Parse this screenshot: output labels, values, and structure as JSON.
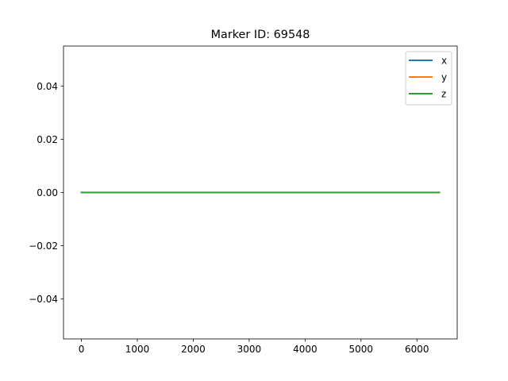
{
  "chart_data": {
    "type": "line",
    "title": "Marker ID: 69548",
    "xlabel": "",
    "ylabel": "",
    "xlim": [
      -320,
      6720
    ],
    "ylim": [
      -0.055,
      0.055
    ],
    "x_ticks": [
      0,
      1000,
      2000,
      3000,
      4000,
      5000,
      6000
    ],
    "y_ticks": [
      -0.04,
      -0.02,
      0.0,
      0.02,
      0.04
    ],
    "x_tick_labels": [
      "0",
      "1000",
      "2000",
      "3000",
      "4000",
      "5000",
      "6000"
    ],
    "y_tick_labels": [
      "−0.04",
      "−0.02",
      "0.00",
      "0.02",
      "0.04"
    ],
    "legend_position": "top-right",
    "series": [
      {
        "name": "x",
        "color": "#1f77b4",
        "x": [
          0,
          6400
        ],
        "values": [
          0,
          0
        ]
      },
      {
        "name": "y",
        "color": "#ff7f0e",
        "x": [
          0,
          6400
        ],
        "values": [
          0,
          0
        ]
      },
      {
        "name": "z",
        "color": "#2ca02c",
        "x": [
          0,
          6400
        ],
        "values": [
          0,
          0
        ]
      }
    ]
  }
}
